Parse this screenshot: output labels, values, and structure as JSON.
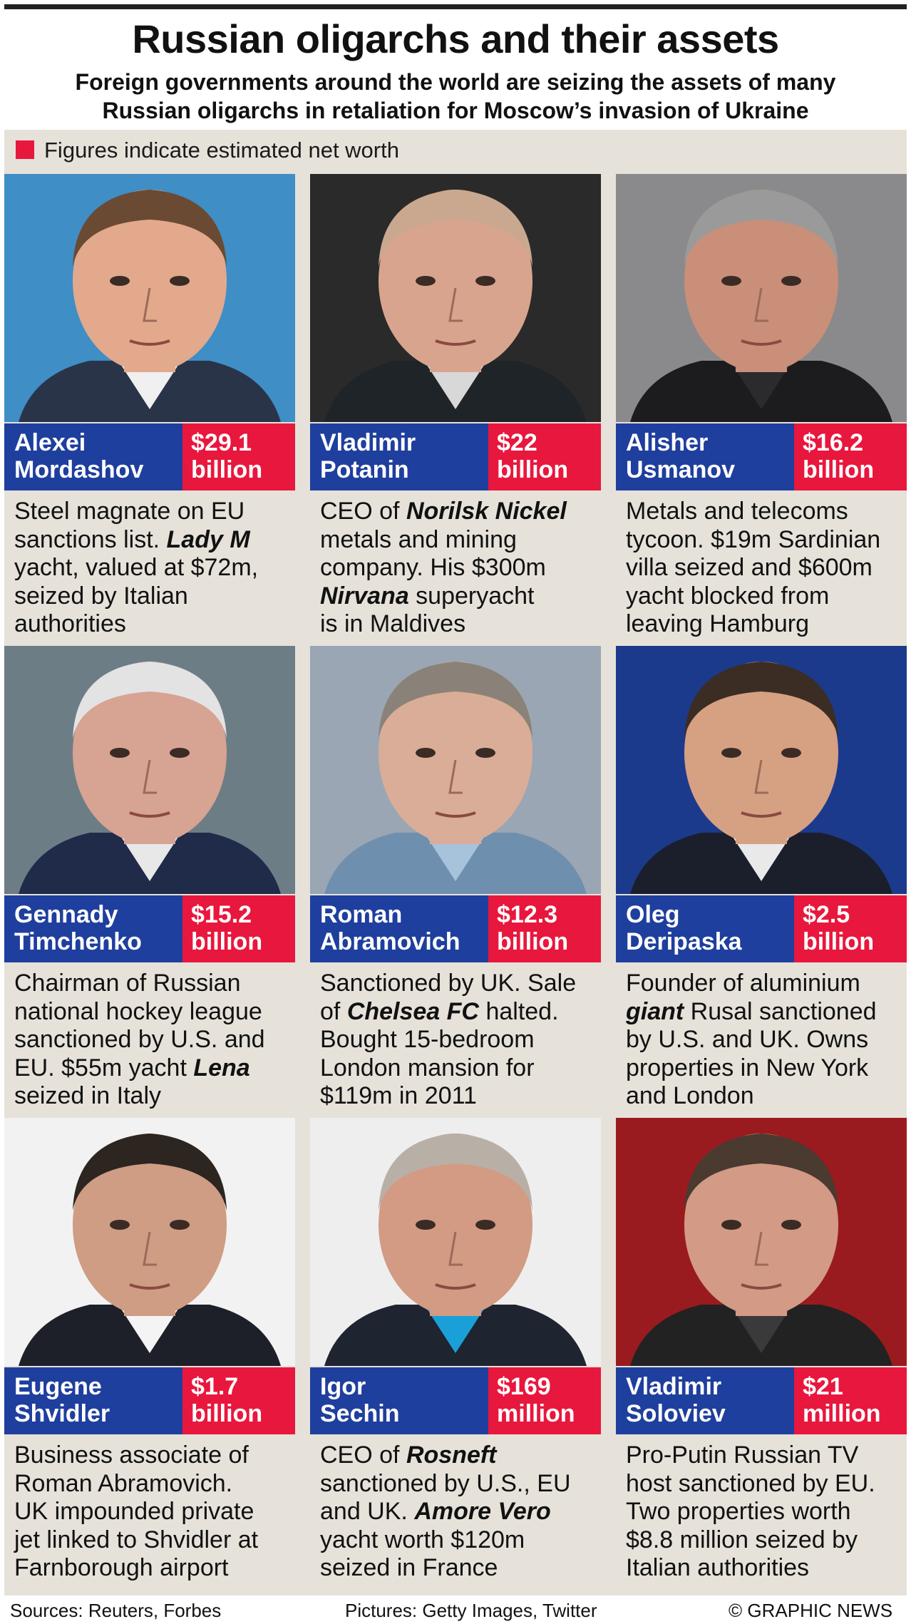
{
  "header": {
    "title": "Russian oligarchs and their assets",
    "subtitle_line1": "Foreign governments around the world are seizing the assets of many",
    "subtitle_line2": "Russian oligarchs in retaliation for Moscow’s invasion of Ukraine"
  },
  "legend": {
    "text": "Figures indicate estimated net worth",
    "swatch_color": "#e8173d"
  },
  "colors": {
    "name_bar": "#1f3f9e",
    "worth_bar": "#e8173d",
    "panel_bg": "#e6e2da"
  },
  "oligarchs": [
    {
      "first": "Alexei",
      "last": "Mordashov",
      "worth_amount": "$29.1",
      "worth_unit": "billion",
      "desc": [
        "Steel magnate on EU",
        "sanctions list. ",
        "Lady M",
        "yacht, valued at $72m,",
        "seized by Italian",
        "authorities"
      ],
      "photo": {
        "bg": "#3f8ec6",
        "skin": "#e2a98c",
        "hair": "#6b4a33",
        "suit": "#2a3448",
        "shirt": "#f0f0f0"
      }
    },
    {
      "first": "Vladimir",
      "last": "Potanin",
      "worth_amount": "$22",
      "worth_unit": "billion",
      "desc": [
        "CEO of ",
        "Norilsk Nickel",
        "metals and mining",
        "company. His $300m",
        "Nirvana",
        " superyacht",
        "is in Maldives"
      ],
      "photo": {
        "bg": "#2a2a2a",
        "skin": "#d9a48e",
        "hair": "#caa890",
        "suit": "#1f2428",
        "shirt": "#d8d8d8"
      }
    },
    {
      "first": "Alisher",
      "last": "Usmanov",
      "worth_amount": "$16.2",
      "worth_unit": "billion",
      "desc": [
        "Metals and telecoms",
        "tycoon. $19m Sardinian",
        "villa seized and $600m",
        "yacht blocked from",
        "leaving Hamburg"
      ],
      "photo": {
        "bg": "#8a8a8c",
        "skin": "#c98f78",
        "hair": "#9a9a9a",
        "suit": "#1c1c1f",
        "shirt": "#2b2b2e"
      }
    },
    {
      "first": "Gennady",
      "last": "Timchenko",
      "worth_amount": "$15.2",
      "worth_unit": "billion",
      "desc": [
        "Chairman of Russian",
        "national hockey league",
        "sanctioned by U.S. and",
        "EU. $55m yacht ",
        "Lena",
        "seized in Italy"
      ],
      "photo": {
        "bg": "#6d7d86",
        "skin": "#d7a393",
        "hair": "#e3e3e3",
        "suit": "#1f2b48",
        "shirt": "#e8e8e8"
      }
    },
    {
      "first": "Roman",
      "last": "Abramovich",
      "worth_amount": "$12.3",
      "worth_unit": "billion",
      "desc": [
        "Sanctioned by UK. Sale",
        "of ",
        "Chelsea FC",
        " halted.",
        "Bought 15-bedroom",
        "London mansion for",
        "$119m in 2011"
      ],
      "photo": {
        "bg": "#9aa6b4",
        "skin": "#d9ad97",
        "hair": "#8a8278",
        "suit": "#6f8fae",
        "shirt": "#a7c3dc"
      }
    },
    {
      "first": "Oleg",
      "last": "Deripaska",
      "worth_amount": "$2.5",
      "worth_unit": "billion",
      "desc": [
        "Founder of aluminium",
        "giant ",
        "Rusal",
        " sanctioned",
        "by U.S. and UK. Owns",
        "properties in New York",
        "and London"
      ],
      "photo": {
        "bg": "#1c3a8c",
        "skin": "#d6a083",
        "hair": "#3b2d24",
        "suit": "#1b1f2c",
        "shirt": "#e9e9e9"
      }
    },
    {
      "first": "Eugene",
      "last": "Shvidler",
      "worth_amount": "$1.7",
      "worth_unit": "billion",
      "desc": [
        "Business associate of",
        "Roman Abramovich.",
        "UK impounded private",
        "jet linked to Shvidler at",
        "Farnborough airport"
      ],
      "photo": {
        "bg": "#f2f2f2",
        "skin": "#cf9c84",
        "hair": "#2c2520",
        "suit": "#1d2029",
        "shirt": "#f4f4f4"
      }
    },
    {
      "first": "Igor",
      "last": "Sechin",
      "worth_amount": "$169",
      "worth_unit": "million",
      "desc": [
        "CEO of ",
        "Rosneft",
        "sanctioned by U.S., EU",
        "and UK. ",
        "Amore Vero",
        "yacht worth $120m",
        "seized in France"
      ],
      "photo": {
        "bg": "#eeeeee",
        "skin": "#d39a84",
        "hair": "#b8b0a6",
        "suit": "#1e2430",
        "shirt": "#1aa0d8"
      }
    },
    {
      "first": "Vladimir",
      "last": "Soloviev",
      "worth_amount": "$21",
      "worth_unit": "million",
      "desc": [
        "Pro-Putin Russian TV",
        "host sanctioned by EU.",
        "Two properties worth",
        "$8.8 million seized by",
        "Italian authorities"
      ],
      "photo": {
        "bg": "#9a1b1f",
        "skin": "#d39a86",
        "hair": "#4a3a30",
        "suit": "#222222",
        "shirt": "#3a3a3a"
      }
    }
  ],
  "footer": {
    "sources": "Sources: Reuters, Forbes",
    "pictures": "Pictures: Getty Images, Twitter",
    "credit": "© GRAPHIC NEWS"
  }
}
